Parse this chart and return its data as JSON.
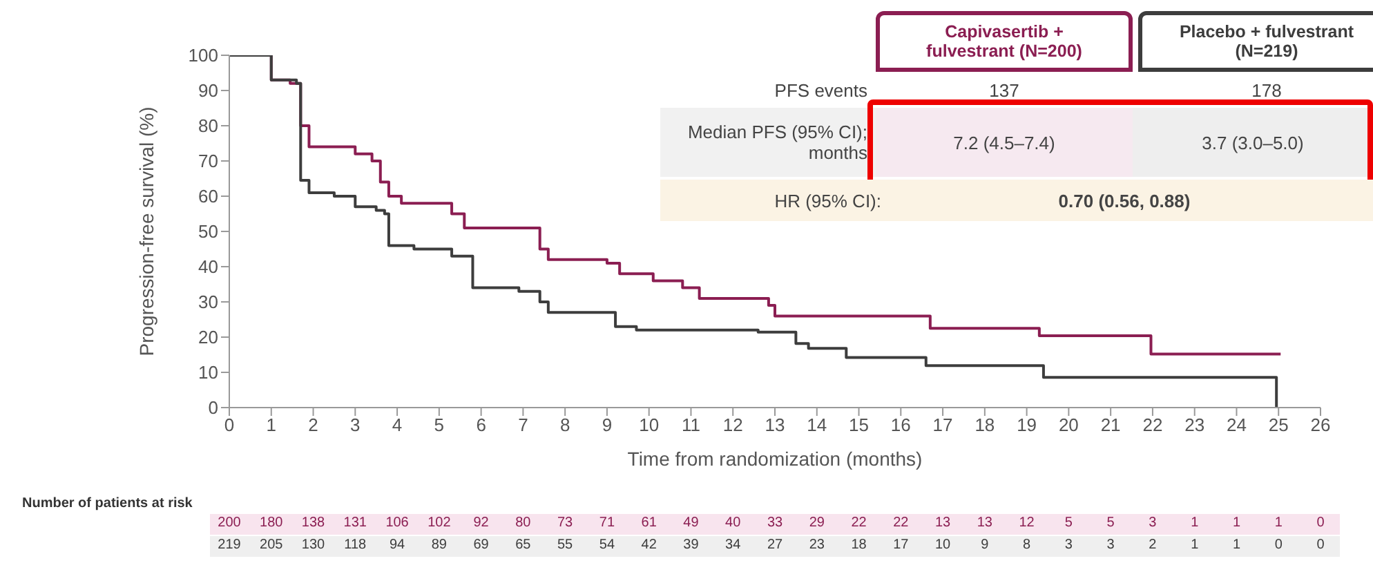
{
  "chart_data": {
    "type": "step",
    "xlabel": "Time from randomization (months)",
    "ylabel": "Progression-free survival (%)",
    "xlim": [
      0,
      26
    ],
    "xticks": [
      0,
      1,
      2,
      3,
      4,
      5,
      6,
      7,
      8,
      9,
      10,
      11,
      12,
      13,
      14,
      15,
      16,
      17,
      18,
      19,
      20,
      21,
      22,
      23,
      24,
      25,
      26
    ],
    "ylim": [
      0,
      100
    ],
    "yticks": [
      0,
      10,
      20,
      30,
      40,
      50,
      60,
      70,
      80,
      90,
      100
    ],
    "legend": "top right",
    "grid": false,
    "marker": "none",
    "series": [
      {
        "name": "Capivasertib + fulvestrant (N=200)",
        "color": "#8b1e52",
        "x": [
          0,
          0.5,
          1.0,
          1.45,
          1.7,
          1.9,
          2.6,
          3.0,
          3.4,
          3.6,
          3.8,
          4.1,
          5.3,
          5.6,
          7.2,
          7.4,
          7.6,
          9.0,
          9.3,
          10.1,
          10.8,
          11.2,
          12.85,
          13.0,
          16.2,
          16.7,
          19.3,
          21.96,
          25.05
        ],
        "values": [
          100,
          100,
          93,
          92,
          80,
          74,
          74,
          72,
          70,
          64,
          60,
          58,
          55,
          51,
          51,
          45,
          42,
          41,
          38,
          36,
          34,
          31,
          29,
          26,
          26,
          22.5,
          20.4,
          15.2,
          15.2
        ]
      },
      {
        "name": "Placebo + fulvestrant (N=219)",
        "color": "#3d3d3d",
        "x": [
          0,
          0.5,
          1.0,
          1.6,
          1.7,
          1.9,
          2.5,
          3.0,
          3.5,
          3.7,
          3.8,
          4.4,
          5.3,
          5.8,
          6.9,
          7.4,
          7.6,
          9.0,
          9.2,
          9.7,
          12.6,
          13.5,
          13.8,
          14.7,
          16.6,
          19.4,
          24.9,
          24.95
        ],
        "values": [
          100,
          100,
          93,
          92,
          64.5,
          61,
          60,
          57,
          56,
          55,
          46,
          45,
          43,
          34,
          33,
          30,
          27,
          27,
          23,
          22,
          21.4,
          18.2,
          16.8,
          14.2,
          11.9,
          8.6,
          8.6,
          0
        ]
      }
    ],
    "annotations": [
      "PFS events",
      "137",
      "178",
      "Median PFS (95% CI); months",
      "7.2 (4.5–7.4)",
      "3.7 (3.0–5.0)",
      "HR (95% CI):",
      "0.70 (0.56, 0.88)",
      "Number of patients at risk",
      "200 180 138 131 106 102 92 80 73 71 61 49 40 33 29 22 22 13 13 12 5 5 3 1 1 1 0",
      "219 205 130 118 94 89 69 65 55 54 42 39 34 27 23 18 17 10 9 8 3 3 2 1 1 0 0"
    ]
  }
}
